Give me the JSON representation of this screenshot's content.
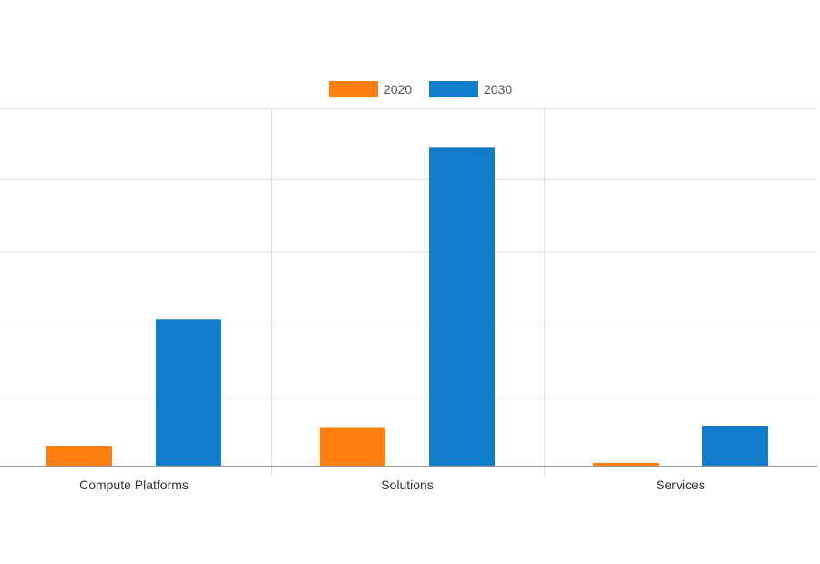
{
  "chart_data": {
    "type": "bar",
    "title": "",
    "xlabel": "",
    "ylabel": "",
    "categories": [
      "Compute Platforms",
      "Solutions",
      "Services"
    ],
    "series": [
      {
        "name": "2020",
        "color": "#ff7f0e",
        "values": [
          2.7,
          5.3,
          0.4
        ]
      },
      {
        "name": "2030",
        "color": "#0f7dc9",
        "values": [
          20.5,
          44.6,
          5.5
        ]
      }
    ],
    "ylim": [
      0,
      50
    ],
    "y_gridlines": [
      0,
      10,
      20,
      30,
      40,
      50
    ],
    "grid": true,
    "legend_position": "top"
  }
}
